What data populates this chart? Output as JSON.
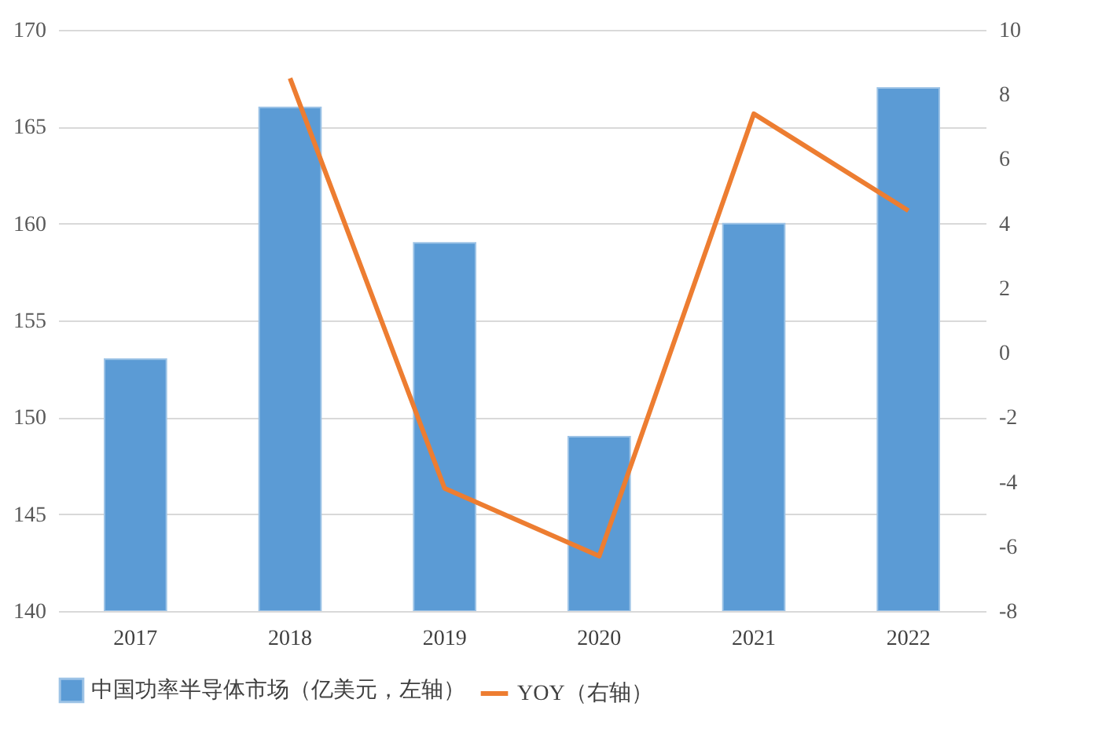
{
  "chart_data": {
    "type": "bar",
    "categories": [
      "2017",
      "2018",
      "2019",
      "2020",
      "2021",
      "2022"
    ],
    "series": [
      {
        "name": "中国功率半导体市场（亿美元，左轴）",
        "color": "#5b9bd5",
        "values": [
          153,
          166,
          159,
          149,
          160,
          167
        ]
      },
      {
        "name": "YOY（右轴）",
        "type": "line",
        "axis": "y2",
        "color": "#ed7d31",
        "values": [
          null,
          8.5,
          -4.2,
          -6.3,
          7.4,
          4.4
        ]
      }
    ],
    "ylim": [
      140,
      170
    ],
    "yticks": [
      140,
      145,
      150,
      155,
      160,
      165,
      170
    ],
    "y2lim": [
      -8,
      10
    ],
    "y2ticks": [
      -8,
      -6,
      -4,
      -2,
      0,
      2,
      4,
      6,
      8,
      10
    ],
    "grid": "y",
    "legend": "bottom",
    "marker": "none",
    "line_style": "solid"
  }
}
